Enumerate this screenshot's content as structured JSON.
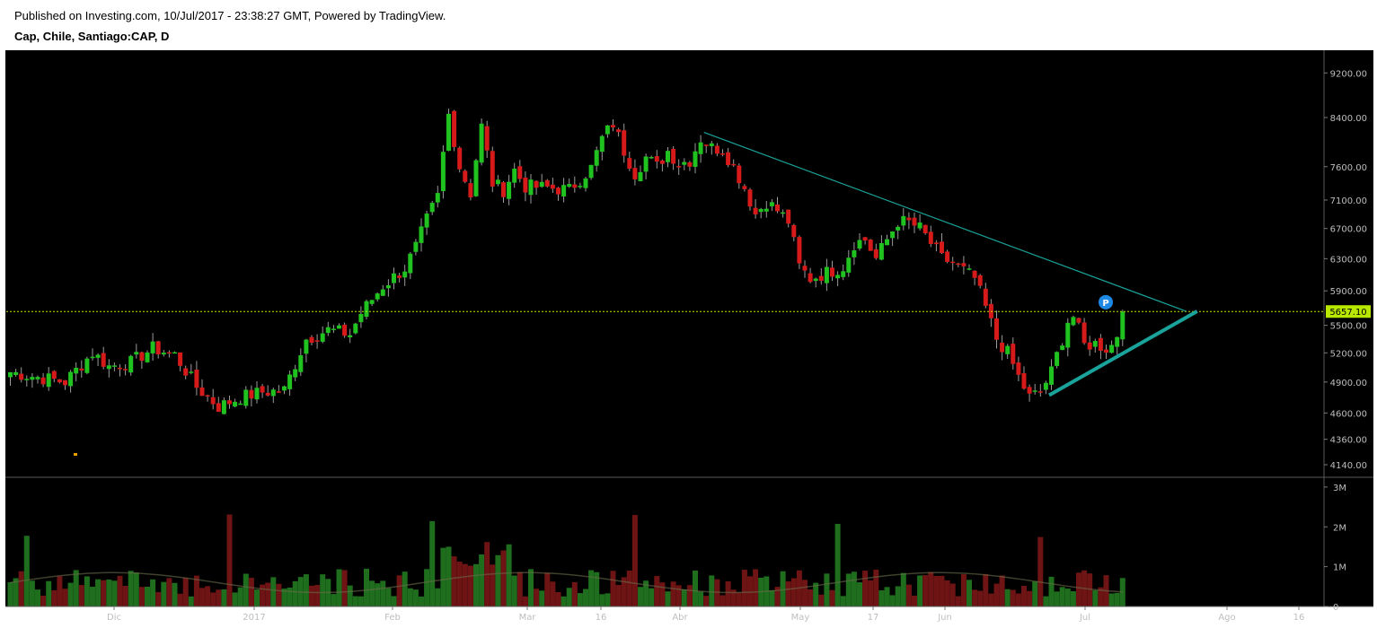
{
  "header": {
    "published": "Published on Investing.com, 10/Jul/2017 - 23:38:27 GMT, Powered by TradingView.",
    "symbol": "Cap, Chile, Santiago:CAP, D"
  },
  "colors": {
    "background": "#000000",
    "up": "#1fc21f",
    "down": "#d61a1a",
    "volume_up": "#1e6e1e",
    "volume_down": "#6e1414",
    "trendline": "#1aa39b",
    "price_line": "#b8e800"
  },
  "chart_data": [
    {
      "type": "candlestick",
      "name": "price",
      "y_ticks": [
        "9200.00",
        "8400.00",
        "7600.00",
        "7100.00",
        "6700.00",
        "6300.00",
        "5900.00",
        "5500.00",
        "5200.00",
        "4900.00",
        "4600.00",
        "4360.00",
        "4140.00"
      ],
      "y_tick_values": [
        9200,
        8400,
        7600,
        7100,
        6700,
        6300,
        5900,
        5500,
        5200,
        4900,
        4600,
        4360,
        4140
      ],
      "y_scale": "log",
      "ylim": [
        4050,
        9600
      ],
      "x_labels": [
        "Dic",
        "2017",
        "Feb",
        "Mar",
        "16",
        "Abr",
        "May",
        "17",
        "Jun",
        "Jul",
        "Ago",
        "16"
      ],
      "last_price_label": "5657.10",
      "last_price": 5657.1,
      "marker_label": "P",
      "marker": {
        "bar": 200,
        "price": 5620
      },
      "trendline_resistance": {
        "from": {
          "bar": 127,
          "price": 8150
        },
        "to": {
          "bar": 215,
          "price": 5660
        }
      },
      "trendline_support": {
        "from": {
          "bar": 190,
          "price": 4770
        },
        "to": {
          "bar": 217,
          "price": 5660
        }
      },
      "bars_total": 238,
      "anchors": [
        [
          0,
          5000
        ],
        [
          5,
          4950
        ],
        [
          10,
          4900
        ],
        [
          15,
          5200
        ],
        [
          18,
          5060
        ],
        [
          22,
          5100
        ],
        [
          26,
          5250
        ],
        [
          30,
          5180
        ],
        [
          34,
          4850
        ],
        [
          38,
          4660
        ],
        [
          42,
          4750
        ],
        [
          46,
          4800
        ],
        [
          50,
          4820
        ],
        [
          54,
          5350
        ],
        [
          58,
          5450
        ],
        [
          62,
          5400
        ],
        [
          64,
          5640
        ],
        [
          68,
          5960
        ],
        [
          72,
          6180
        ],
        [
          74,
          6450
        ],
        [
          76,
          6820
        ],
        [
          78,
          7150
        ],
        [
          80,
          8450
        ],
        [
          82,
          7600
        ],
        [
          84,
          7200
        ],
        [
          86,
          8250
        ],
        [
          88,
          7350
        ],
        [
          90,
          7250
        ],
        [
          92,
          7550
        ],
        [
          94,
          7300
        ],
        [
          98,
          7280
        ],
        [
          102,
          7250
        ],
        [
          106,
          7580
        ],
        [
          108,
          8050
        ],
        [
          110,
          8300
        ],
        [
          112,
          7850
        ],
        [
          114,
          7500
        ],
        [
          116,
          7750
        ],
        [
          118,
          7600
        ],
        [
          120,
          7850
        ],
        [
          122,
          7650
        ],
        [
          124,
          7700
        ],
        [
          126,
          8050
        ],
        [
          128,
          7900
        ],
        [
          130,
          7880
        ],
        [
          132,
          7600
        ],
        [
          134,
          7280
        ],
        [
          136,
          6900
        ],
        [
          138,
          7080
        ],
        [
          140,
          6950
        ],
        [
          142,
          6800
        ],
        [
          144,
          6200
        ],
        [
          146,
          6050
        ],
        [
          148,
          6100
        ],
        [
          152,
          6200
        ],
        [
          154,
          6500
        ],
        [
          156,
          6550
        ],
        [
          158,
          6300
        ],
        [
          160,
          6550
        ],
        [
          162,
          6800
        ],
        [
          164,
          6780
        ],
        [
          166,
          6700
        ],
        [
          168,
          6500
        ],
        [
          170,
          6300
        ],
        [
          172,
          6250
        ],
        [
          174,
          6150
        ],
        [
          176,
          6050
        ],
        [
          178,
          5700
        ],
        [
          180,
          5350
        ],
        [
          182,
          5200
        ],
        [
          184,
          4950
        ],
        [
          186,
          4750
        ],
        [
          188,
          4800
        ],
        [
          190,
          5000
        ],
        [
          192,
          5350
        ],
        [
          193,
          5550
        ],
        [
          194,
          5600
        ],
        [
          195,
          5450
        ],
        [
          196,
          5280
        ],
        [
          198,
          5300
        ],
        [
          200,
          5250
        ],
        [
          201,
          5280
        ],
        [
          202,
          5400
        ],
        [
          203,
          5657.1
        ]
      ]
    },
    {
      "type": "bar",
      "name": "volume",
      "y_ticks": [
        "3M",
        "2M",
        "1M",
        "0"
      ],
      "y_tick_values": [
        3000000,
        2000000,
        1000000,
        0
      ],
      "ylim": [
        0,
        3200000
      ]
    }
  ]
}
